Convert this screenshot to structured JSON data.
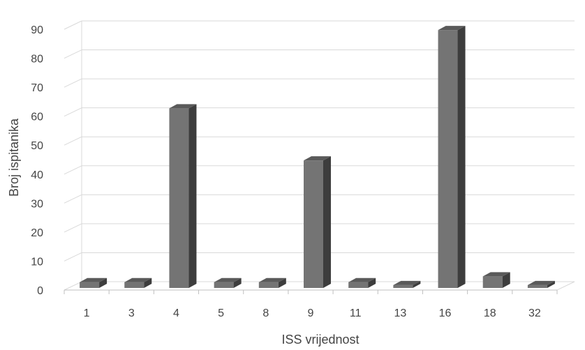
{
  "chart_data": {
    "type": "bar",
    "categories": [
      "1",
      "3",
      "4",
      "5",
      "8",
      "9",
      "11",
      "13",
      "16",
      "18",
      "32"
    ],
    "values": [
      2,
      2,
      62,
      2,
      2,
      44,
      2,
      1,
      89,
      4,
      1
    ],
    "title": "",
    "xlabel": "ISS vrijednost",
    "ylabel": "Broj ispitanika",
    "ylim": [
      0,
      90
    ],
    "yticks": [
      "0",
      "10",
      "20",
      "30",
      "40",
      "50",
      "60",
      "70",
      "80",
      "90"
    ],
    "grid": true,
    "legend": "none",
    "style": "3d-column",
    "colors": {
      "bar_front": "#747474",
      "bar_side": "#3d3d3d",
      "bar_top": "#5a5a5a",
      "gridline": "#d9d9d9",
      "axis": "#bfbfbf",
      "text": "#444444"
    }
  }
}
